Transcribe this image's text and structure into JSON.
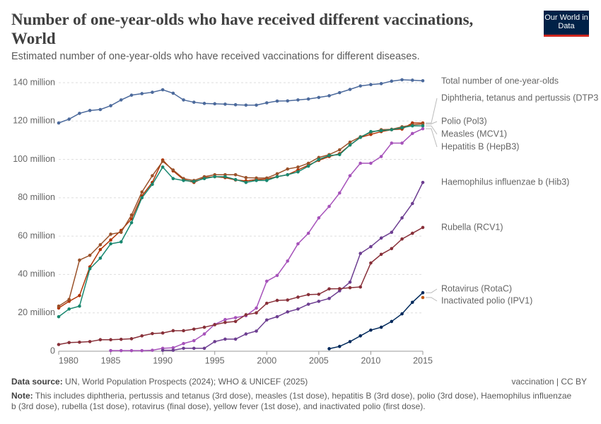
{
  "chart_data": {
    "type": "line",
    "title": "Number of one-year-olds who have received different vaccinations, World",
    "subtitle": "Estimated number of one-year-olds who have received vaccinations for different diseases.",
    "logo": "Our World in Data",
    "source_label": "Data source:",
    "source": "UN, World Population Prospects (2024); WHO & UNICEF (2025)",
    "license": "vaccination | CC BY",
    "note_label": "Note:",
    "note": "This includes diphtheria, pertussis and tetanus (3rd dose), measles (1st dose), hepatitis B (3rd dose), polio (3rd dose), Haemophilus influenzae b (3rd dose), rubella (1st dose), rotavirus (final dose), yellow fever (1st dose), and inactivated polio (first dose).",
    "x": [
      1980,
      1981,
      1982,
      1983,
      1984,
      1985,
      1986,
      1987,
      1988,
      1989,
      1990,
      1991,
      1992,
      1993,
      1994,
      1995,
      1996,
      1997,
      1998,
      1999,
      2000,
      2001,
      2002,
      2003,
      2004,
      2005,
      2006,
      2007,
      2008,
      2009,
      2010,
      2011,
      2012,
      2013,
      2014,
      2015
    ],
    "xlim": [
      1980,
      2015
    ],
    "xticks": [
      1980,
      1985,
      1990,
      1995,
      2000,
      2005,
      2010,
      2015
    ],
    "ylim": [
      0,
      140000000.0
    ],
    "yticks": [
      0,
      {
        "value": 20000000.0,
        "label": "20 million"
      },
      {
        "value": 40000000.0,
        "label": "40 million"
      },
      {
        "value": 60000000.0,
        "label": "60 million"
      },
      {
        "value": 80000000.0,
        "label": "80 million"
      },
      {
        "value": 100000000.0,
        "label": "100 million"
      },
      {
        "value": 120000000.0,
        "label": "120 million"
      },
      {
        "value": 140000000.0,
        "label": "140 million"
      }
    ],
    "grid": true,
    "series": [
      {
        "name": "Total number of one-year-olds",
        "color": "#4c6a9c",
        "values": [
          119000000.0,
          121000000.0,
          124000000.0,
          125500000.0,
          126000000.0,
          128000000.0,
          131000000.0,
          133500000.0,
          134300000.0,
          135000000.0,
          136300000.0,
          134500000.0,
          131000000.0,
          129800000.0,
          129200000.0,
          129000000.0,
          128800000.0,
          128500000.0,
          128300000.0,
          128300000.0,
          129500000.0,
          130400000.0,
          130500000.0,
          131000000.0,
          131500000.0,
          132300000.0,
          133200000.0,
          134800000.0,
          136500000.0,
          138300000.0,
          139000000.0,
          139500000.0,
          140800000.0,
          141500000.0,
          141300000.0,
          141000000.0
        ]
      },
      {
        "name": "Diphtheria, tetanus and pertussis (DTP3",
        "color": "#b13507",
        "values": [
          22500000.0,
          26000000.0,
          29000000.0,
          44000000.0,
          53000000.0,
          58000000.0,
          63000000.0,
          69000000.0,
          81000000.0,
          88000000.0,
          99700000.0,
          94000000.0,
          89500000.0,
          88000000.0,
          90500000.0,
          91000000.0,
          90500000.0,
          89300000.0,
          88800000.0,
          89500000.0,
          89800000.0,
          91000000.0,
          92000000.0,
          94500000.0,
          97000000.0,
          99500000.0,
          101500000.0,
          103000000.0,
          107500000.0,
          111500000.0,
          113000000.0,
          114500000.0,
          115500000.0,
          115800000.0,
          119000000.0,
          119000000.0
        ]
      },
      {
        "name": "Polio (Pol3)",
        "color": "#9a5129",
        "values": [
          23500000.0,
          27000000.0,
          47500000.0,
          50000000.0,
          55500000.0,
          61000000.0,
          62000000.0,
          71000000.0,
          83000000.0,
          91500000.0,
          99000000.0,
          94500000.0,
          90000000.0,
          89000000.0,
          91000000.0,
          92000000.0,
          92000000.0,
          92000000.0,
          90500000.0,
          90300000.0,
          90300000.0,
          92500000.0,
          95000000.0,
          96000000.0,
          98000000.0,
          101000000.0,
          102500000.0,
          105000000.0,
          109000000.0,
          111800000.0,
          114000000.0,
          115500000.0,
          115700000.0,
          117000000.0,
          118000000.0,
          118500000.0
        ]
      },
      {
        "name": "Measles (MCV1)",
        "color": "#18876f",
        "values": [
          18000000.0,
          22000000.0,
          23500000.0,
          43000000.0,
          48500000.0,
          56000000.0,
          57000000.0,
          67000000.0,
          80000000.0,
          87000000.0,
          96000000.0,
          90000000.0,
          89000000.0,
          88500000.0,
          90000000.0,
          91000000.0,
          91000000.0,
          89500000.0,
          88000000.0,
          89000000.0,
          89000000.0,
          91000000.0,
          92000000.0,
          93500000.0,
          96500000.0,
          100000000.0,
          102000000.0,
          102500000.0,
          107500000.0,
          111500000.0,
          114500000.0,
          115000000.0,
          115500000.0,
          116500000.0,
          117500000.0,
          117500000.0
        ]
      },
      {
        "name": "Hepatitis B (HepB3)",
        "color": "#a652ba",
        "values": [
          null,
          null,
          null,
          null,
          null,
          300000.0,
          300000.0,
          300000.0,
          300000.0,
          500000.0,
          1500000.0,
          1800000.0,
          4000000.0,
          5500000.0,
          9000000.0,
          14000000.0,
          16500000.0,
          17500000.0,
          18500000.0,
          22500000.0,
          36500000.0,
          39500000.0,
          47000000.0,
          56000000.0,
          61500000.0,
          69500000.0,
          75500000.0,
          82500000.0,
          91500000.0,
          98000000.0,
          98000000.0,
          101500000.0,
          108500000.0,
          108500000.0,
          113500000.0,
          116000000.0
        ]
      },
      {
        "name": "Haemophilus influenzae b (Hib3)",
        "color": "#6d3e91",
        "values": [
          null,
          null,
          null,
          null,
          null,
          null,
          null,
          null,
          null,
          null,
          500000.0,
          500000.0,
          1500000.0,
          1500000.0,
          1500000.0,
          5000000.0,
          6300000.0,
          6300000.0,
          9000000.0,
          10500000.0,
          16300000.0,
          18000000.0,
          20500000.0,
          22000000.0,
          24500000.0,
          26000000.0,
          27500000.0,
          31500000.0,
          36000000.0,
          51000000.0,
          54500000.0,
          59000000.0,
          62000000.0,
          69500000.0,
          77000000.0,
          88000000.0
        ]
      },
      {
        "name": "Rubella (RCV1)",
        "color": "#883039",
        "values": [
          3500000.0,
          4500000.0,
          4700000.0,
          5000000.0,
          6000000.0,
          6000000.0,
          6200000.0,
          6500000.0,
          8000000.0,
          9200000.0,
          9500000.0,
          10700000.0,
          10700000.0,
          11500000.0,
          12500000.0,
          13800000.0,
          15000000.0,
          15500000.0,
          19000000.0,
          20000000.0,
          25000000.0,
          26500000.0,
          26700000.0,
          28200000.0,
          29500000.0,
          29700000.0,
          32500000.0,
          32600000.0,
          33100000.0,
          33500000.0,
          46000000.0,
          50500000.0,
          53500000.0,
          58500000.0,
          61500000.0,
          64500000.0
        ]
      },
      {
        "name": "Rotavirus (RotaC)",
        "color": "#00295b",
        "values": [
          null,
          null,
          null,
          null,
          null,
          null,
          null,
          null,
          null,
          null,
          null,
          null,
          null,
          null,
          null,
          null,
          null,
          null,
          null,
          null,
          null,
          null,
          null,
          null,
          null,
          null,
          1300000.0,
          2500000.0,
          5000000.0,
          8000000.0,
          11000000.0,
          12500000.0,
          15500000.0,
          19500000.0,
          25500000.0,
          30500000.0
        ]
      },
      {
        "name": "Inactivated polio (IPV1)",
        "color": "#c05917",
        "values": [
          null,
          null,
          null,
          null,
          null,
          null,
          null,
          null,
          null,
          null,
          null,
          null,
          null,
          null,
          null,
          null,
          null,
          null,
          null,
          null,
          null,
          null,
          null,
          null,
          null,
          null,
          null,
          null,
          null,
          null,
          null,
          null,
          null,
          null,
          null,
          28000000.0
        ]
      }
    ]
  }
}
